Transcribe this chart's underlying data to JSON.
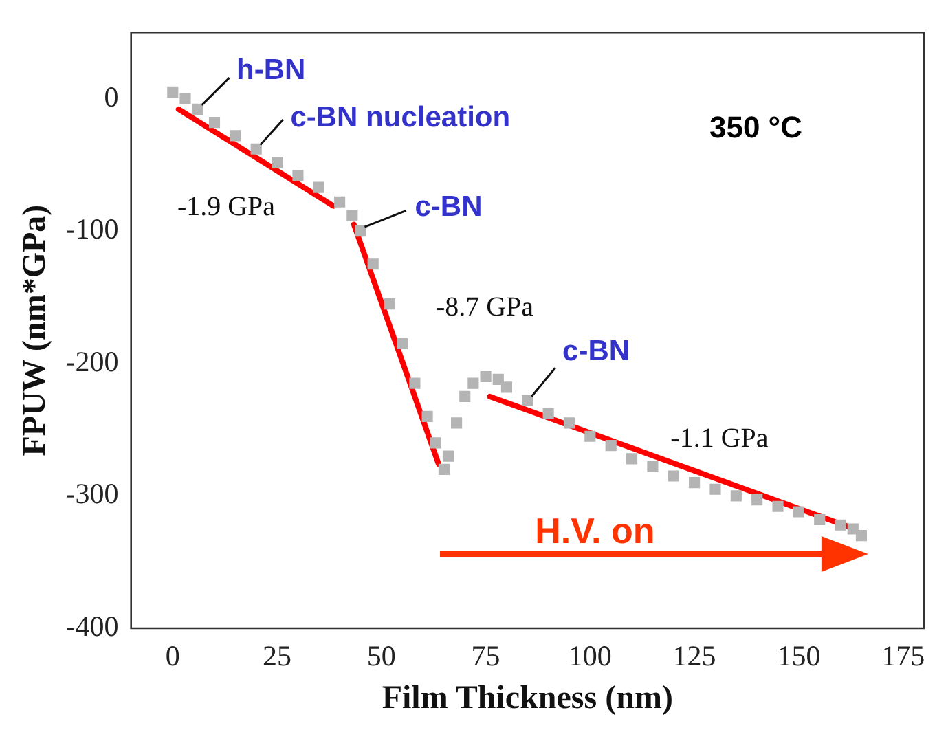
{
  "chart_data": {
    "type": "scatter",
    "xlabel": "Film Thickness (nm)",
    "ylabel": "FPUW (nm*GPa)",
    "xlim": [
      -10,
      180
    ],
    "xticks": [
      0,
      25,
      50,
      75,
      100,
      125,
      150,
      175
    ],
    "ylim": [
      -400,
      50
    ],
    "yticks": [
      -400,
      -300,
      -200,
      -100,
      0
    ],
    "grid": false,
    "legend": false,
    "marker": "square",
    "series": [
      {
        "type": "scatter",
        "color": "#b4b4b4",
        "x": [
          0,
          3,
          6,
          10,
          15,
          20,
          25,
          30,
          35,
          40,
          43,
          45,
          48,
          52,
          55,
          58,
          61,
          63,
          65,
          66,
          68,
          70,
          72,
          75,
          78,
          80,
          85,
          90,
          95,
          100,
          105,
          110,
          115,
          120,
          125,
          130,
          135,
          140,
          145,
          150,
          155,
          160,
          163,
          165
        ],
        "values": [
          5,
          0,
          -8,
          -18,
          -28,
          -38,
          -48,
          -58,
          -67,
          -78,
          -88,
          -100,
          -125,
          -155,
          -185,
          -215,
          -240,
          -260,
          -280,
          -270,
          -245,
          -225,
          -215,
          -210,
          -212,
          -218,
          -228,
          -238,
          -245,
          -255,
          -262,
          -272,
          -278,
          -285,
          -290,
          -295,
          -300,
          -303,
          -308,
          -312,
          -318,
          -322,
          -325,
          -330
        ]
      },
      {
        "type": "line",
        "color": "#ff0000",
        "marker": "none",
        "x": [
          1.4,
          38.5
        ],
        "values": [
          -8,
          -81
        ]
      },
      {
        "type": "line",
        "color": "#ff0000",
        "marker": "none",
        "x": [
          43.4,
          63.7
        ],
        "values": [
          -95,
          -276
        ]
      },
      {
        "type": "line",
        "color": "#ff0000",
        "marker": "none",
        "x": [
          76,
          161.7
        ],
        "values": [
          -225,
          -323
        ]
      }
    ],
    "annotations": [
      {
        "text": "h-BN",
        "x": 6,
        "y": -8
      },
      {
        "text": "c-BN nucleation",
        "x": 20,
        "y": -38
      },
      "-1.9 GPa",
      {
        "text": "c-BN",
        "x": 45,
        "y": -100
      },
      "-8.7 GPa",
      {
        "text": "c-BN",
        "x": 85,
        "y": -228
      },
      "-1.1 GPa",
      "350 °C",
      "H.V. on"
    ]
  }
}
